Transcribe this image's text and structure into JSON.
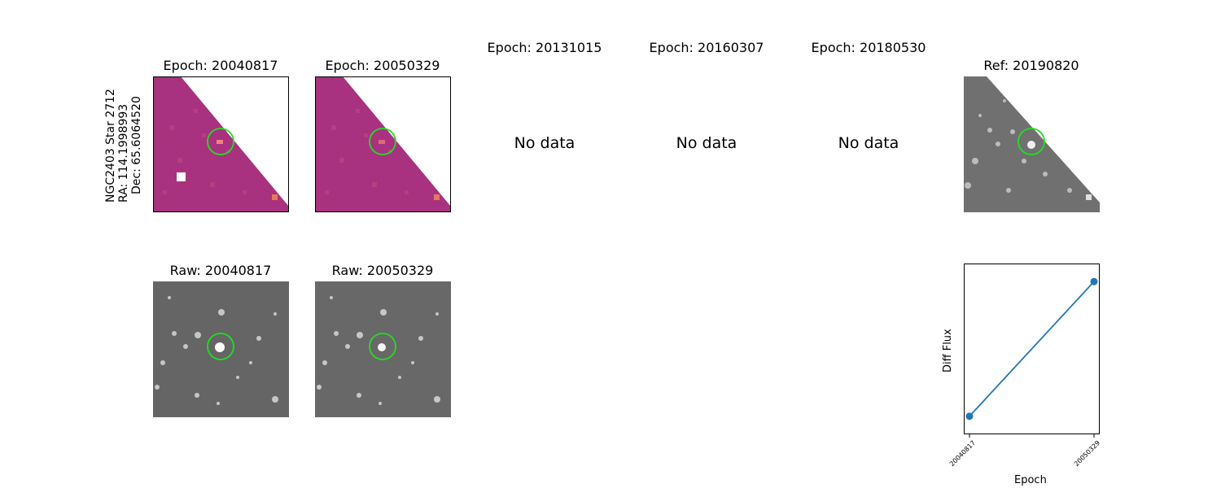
{
  "star_label": {
    "name": "NGC2403 Star 2712",
    "ra": "RA: 114.1998993",
    "dec": "Dec: 65.6064520"
  },
  "diff_panels": [
    {
      "title": "Epoch: 20040817",
      "has_data": true
    },
    {
      "title": "Epoch: 20050329",
      "has_data": true
    },
    {
      "title": "Epoch: 20131015",
      "has_data": false
    },
    {
      "title": "Epoch: 20160307",
      "has_data": false
    },
    {
      "title": "Epoch: 20180530",
      "has_data": false
    }
  ],
  "no_data_text": "No data",
  "ref_panel": {
    "title": "Ref: 20190820"
  },
  "raw_panels": [
    {
      "title": "Raw: 20040817"
    },
    {
      "title": "Raw: 20050329"
    }
  ],
  "colors": {
    "diff_map": "#a8327f",
    "marker_circle": "#22dd22",
    "line": "#1f77b4"
  },
  "chart_data": {
    "type": "line",
    "x": [
      "20040817",
      "20050329"
    ],
    "series": [
      {
        "values": [
          0.05,
          0.95
        ]
      }
    ],
    "xlabel": "Epoch",
    "ylabel": "Diff Flux",
    "yticks": "none",
    "grid": false
  }
}
